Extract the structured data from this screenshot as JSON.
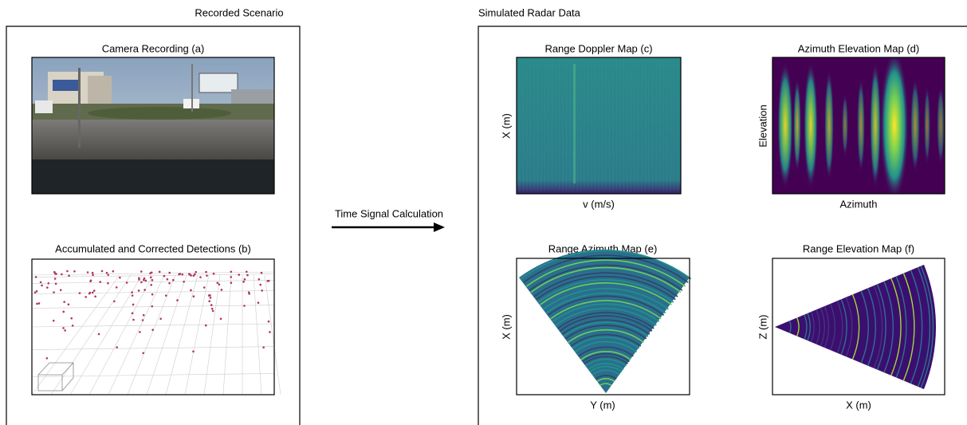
{
  "left_panel": {
    "title": "Recorded Scenario",
    "panels": [
      {
        "title": "Camera Recording (a)"
      },
      {
        "title": "Accumulated and Corrected Detections (b)"
      }
    ]
  },
  "arrow": {
    "label": "Time Signal Calculation"
  },
  "right_panel": {
    "title": "Simulated Radar Data",
    "maps": [
      {
        "title": "Range Doppler Map (c)",
        "x_label": "v (m/s)",
        "y_label": "X (m)"
      },
      {
        "title": "Azimuth Elevation Map (d)",
        "x_label": "Azimuth",
        "y_label": "Elevation"
      },
      {
        "title": "Range Azimuth Map (e)",
        "x_label": "Y (m)",
        "y_label": "X (m)"
      },
      {
        "title": "Range Elevation Map (f)",
        "x_label": "X (m)",
        "y_label": "Z (m)"
      }
    ]
  }
}
